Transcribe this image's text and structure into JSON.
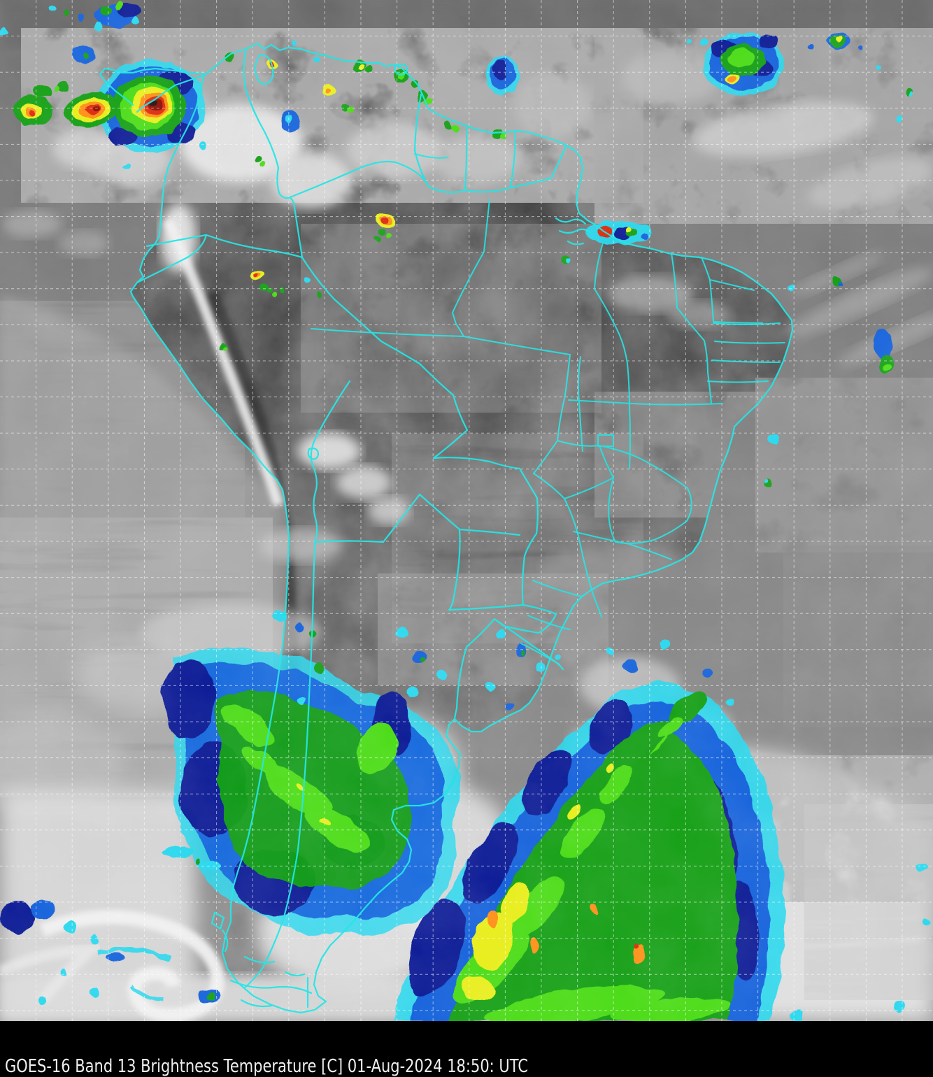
{
  "caption": {
    "text": "GOES-16 Band 13  Brightness Temperature [C] 01-Aug-2024 18:50: UTC",
    "satellite": "GOES-16",
    "band": "Band 13",
    "product": "Brightness Temperature [C]",
    "datetime": "01-Aug-2024 18:50: UTC"
  },
  "colors": {
    "border_lines": "#1BE4E4",
    "graticule": "#FFFFFF",
    "caption_background": "#000000",
    "caption_foreground": "#EFEFEF",
    "ocean_gray": "#7D7D7D",
    "land_gray": "#4F4F4F",
    "temperature_palette_warm_to_cold": [
      "#BDBDBD",
      "#FFFFFF",
      "#29D8EE",
      "#1464DC",
      "#0A1E96",
      "#12A012",
      "#4CDC14",
      "#E8EE1E",
      "#FF9014",
      "#DC2A0A",
      "#8C1000",
      "#2A100A"
    ]
  }
}
